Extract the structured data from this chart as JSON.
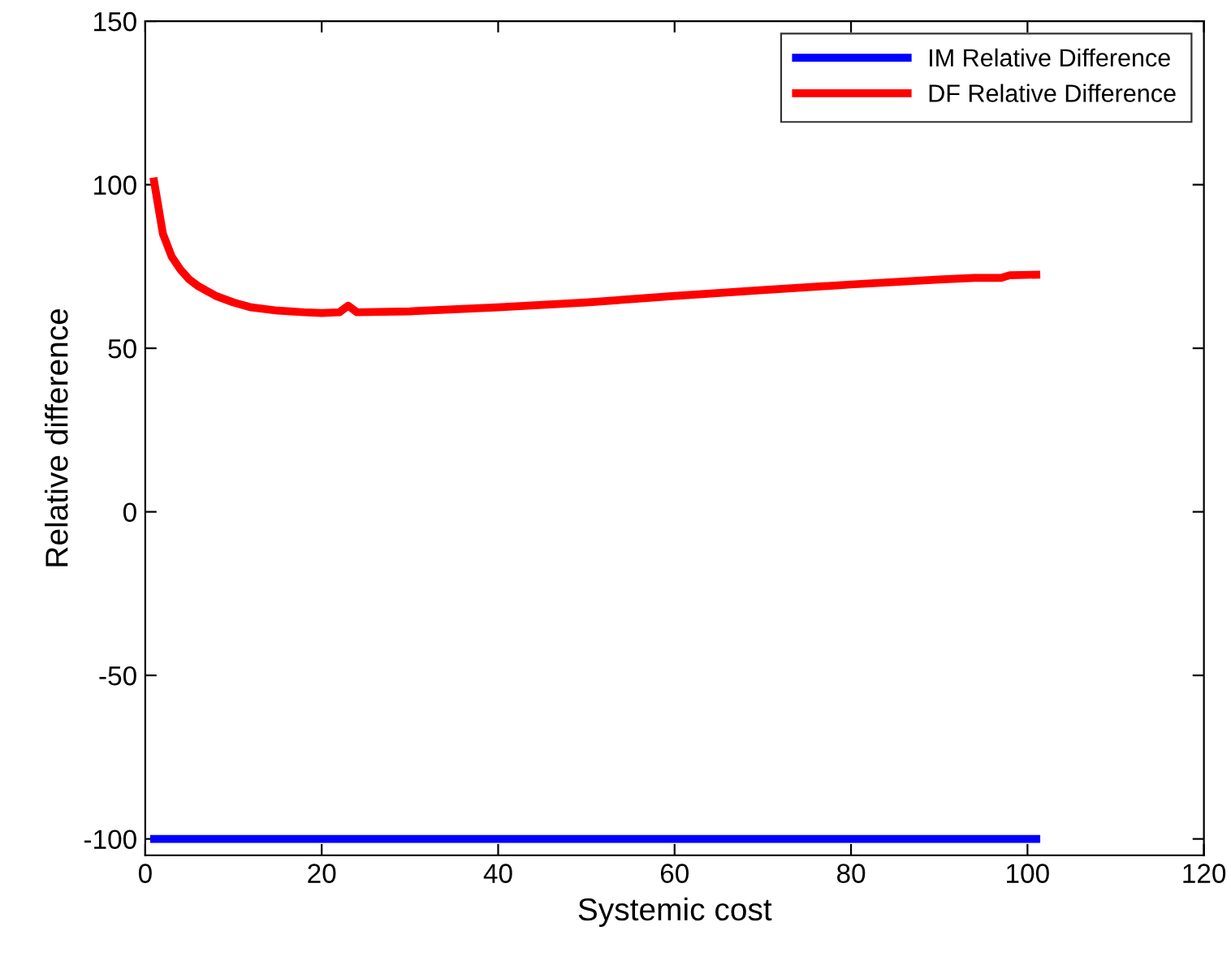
{
  "chart_data": {
    "type": "line",
    "xlabel": "Systemic cost",
    "ylabel": "Relative difference",
    "xlim": [
      0,
      120
    ],
    "xticks": [
      0,
      20,
      40,
      60,
      80,
      100,
      120
    ],
    "ylim": [
      -105,
      150
    ],
    "yticks": [
      -100,
      -50,
      0,
      50,
      100,
      150
    ],
    "grid": false,
    "legend": "top right",
    "line_style": "solid",
    "marker": "none",
    "series": [
      {
        "name": "IM Relative Difference",
        "color": "#0000ff",
        "x": [
          1,
          101
        ],
        "values": [
          -100,
          -100
        ]
      },
      {
        "name": "DF Relative Difference",
        "color": "#ff0000",
        "x": [
          1,
          2,
          3,
          4,
          5,
          6,
          8,
          10,
          12,
          15,
          18,
          20,
          22,
          23,
          24,
          30,
          40,
          50,
          55,
          60,
          70,
          80,
          90,
          94,
          97,
          98,
          101
        ],
        "values": [
          101,
          85,
          78,
          74,
          71,
          69,
          66,
          64,
          62.5,
          61.5,
          61,
          60.8,
          61,
          63,
          61,
          61.3,
          62.5,
          64,
          65,
          66,
          67.8,
          69.5,
          71,
          71.5,
          71.5,
          72.3,
          72.5
        ]
      }
    ]
  }
}
